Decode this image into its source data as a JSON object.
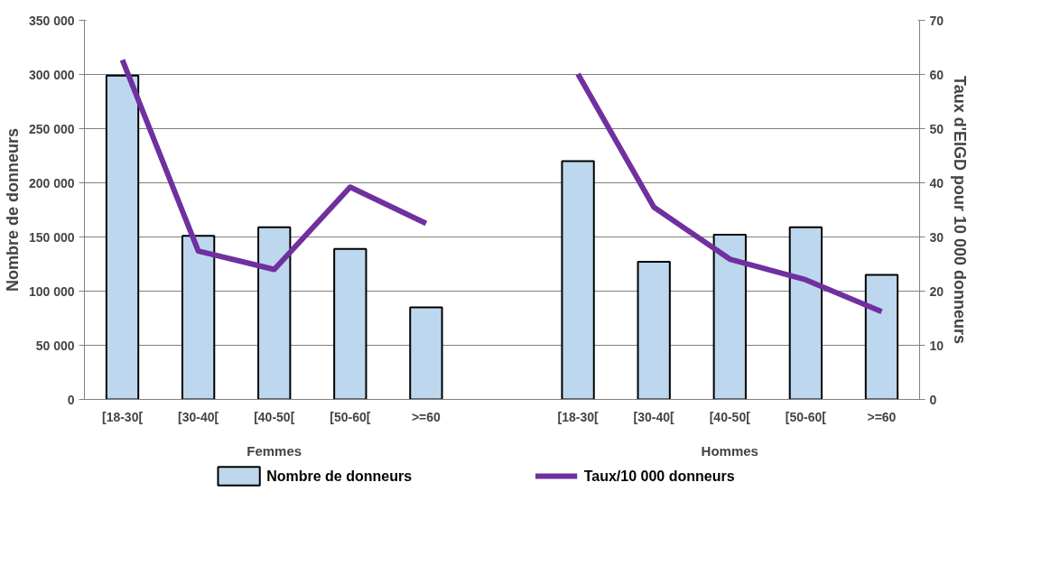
{
  "chart_data": {
    "type": "bar",
    "categories": [
      "[18-30[",
      "[30-40[",
      "[40-50[",
      "[50-60[",
      ">=60",
      null,
      "[18-30[",
      "[30-40[",
      "[40-50[",
      "[50-60[",
      ">=60"
    ],
    "series": [
      {
        "name": "Nombre de donneurs",
        "type": "bar",
        "color": "#bdd7ee",
        "values": [
          299000,
          151000,
          159000,
          139000,
          85000,
          null,
          220000,
          127000,
          152000,
          159000,
          115000
        ]
      },
      {
        "name": "Taux/10 000 donneurs",
        "type": "line",
        "axis": "y2",
        "color": "#7030a0",
        "values": [
          62.7,
          27.4,
          24.0,
          39.2,
          32.5,
          null,
          60.1,
          35.5,
          25.9,
          22.1,
          16.2
        ]
      }
    ],
    "annotations": [
      "Femmes",
      "Hommes"
    ],
    "ylabel": "Nombre de donneurs",
    "y2label": "Taux d'EIGD pour 10 000 donneurs",
    "ylim": [
      0,
      350000
    ],
    "yticks": [
      0,
      {
        "value": 50000,
        "label": "50 000"
      },
      {
        "value": 100000,
        "label": "100 000"
      },
      {
        "value": 150000,
        "label": "150 000"
      },
      {
        "value": 200000,
        "label": "200 000"
      },
      {
        "value": 250000,
        "label": "250 000"
      },
      {
        "value": 300000,
        "label": "300 000"
      },
      {
        "value": 350000,
        "label": "350 000"
      }
    ],
    "y2lim": [
      0,
      70
    ],
    "y2ticks": [
      0,
      10,
      20,
      30,
      40,
      50,
      60,
      70
    ],
    "grid": "y",
    "legend": "bottom",
    "line_style": "solid",
    "marker": "none"
  }
}
